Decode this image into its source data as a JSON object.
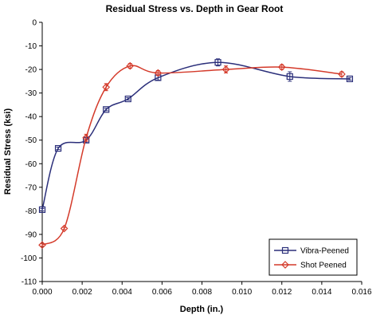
{
  "chart_data": {
    "type": "line",
    "title": "Residual Stress vs. Depth in Gear Root",
    "xlabel": "Depth (in.)",
    "ylabel": "Residual Stress (ksi)",
    "xlim": [
      0,
      0.016
    ],
    "ylim": [
      -110,
      0
    ],
    "xticks": [
      "0.000",
      "0.002",
      "0.004",
      "0.006",
      "0.008",
      "0.010",
      "0.012",
      "0.014",
      "0.016"
    ],
    "yticks": [
      "0",
      "-10",
      "-20",
      "-30",
      "-40",
      "-50",
      "-60",
      "-70",
      "-80",
      "-90",
      "-100",
      "-110"
    ],
    "grid": false,
    "legend_position": "bottom-right",
    "series": [
      {
        "name": "Vibra-Peened",
        "color": "#2b2f7a",
        "marker": "square",
        "x": [
          0.0,
          0.0008,
          0.0022,
          0.0032,
          0.0043,
          0.0058,
          0.0088,
          0.0124,
          0.0154
        ],
        "y": [
          -79.5,
          -53.5,
          -50.0,
          -37.0,
          -32.5,
          -23.5,
          -17.0,
          -23.0,
          -24.0
        ],
        "error": [
          0.5,
          0.5,
          1.0,
          0.5,
          0.5,
          1.0,
          1.5,
          2.0,
          0.5
        ]
      },
      {
        "name": "Shot Peened",
        "color": "#d43a2a",
        "marker": "diamond",
        "x": [
          0.0,
          0.0011,
          0.0022,
          0.0032,
          0.0044,
          0.0058,
          0.0092,
          0.012,
          0.015
        ],
        "y": [
          -94.5,
          -87.5,
          -49.0,
          -27.5,
          -18.5,
          -21.5,
          -20.0,
          -19.0,
          -22.0
        ],
        "error": [
          0.5,
          0.5,
          1.5,
          1.5,
          1.0,
          1.0,
          1.5,
          1.0,
          1.0
        ]
      }
    ]
  }
}
